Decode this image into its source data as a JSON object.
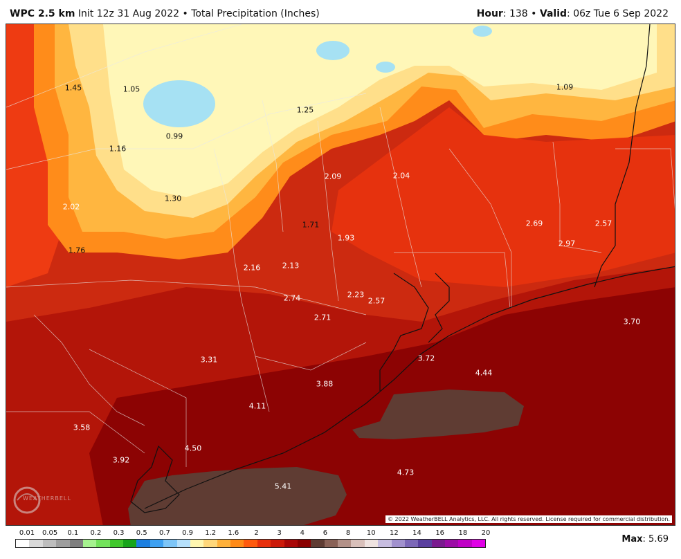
{
  "header": {
    "model": "WPC 2.5 km",
    "init": "Init 12z 31 Aug 2022",
    "bullet": "•",
    "product": "Total Precipitation (Inches)",
    "hour_label": "Hour",
    "hour_value": ": 138",
    "valid_label": "Valid",
    "valid_value": ": 06z Tue 6 Sep 2022"
  },
  "map": {
    "values": [
      {
        "text": "1.45",
        "tone": "dark"
      },
      {
        "text": "1.05",
        "tone": "dark"
      },
      {
        "text": "0.99",
        "tone": "dark"
      },
      {
        "text": "1.16",
        "tone": "dark"
      },
      {
        "text": "1.25",
        "tone": "dark"
      },
      {
        "text": "1.09",
        "tone": "dark"
      },
      {
        "text": "2.02",
        "tone": "light"
      },
      {
        "text": "1.30",
        "tone": "dark"
      },
      {
        "text": "2.09",
        "tone": "light"
      },
      {
        "text": "2.04",
        "tone": "light"
      },
      {
        "text": "1.71",
        "tone": "dark"
      },
      {
        "text": "1.93",
        "tone": "light"
      },
      {
        "text": "2.69",
        "tone": "light"
      },
      {
        "text": "2.57",
        "tone": "light"
      },
      {
        "text": "2.97",
        "tone": "light"
      },
      {
        "text": "1.76",
        "tone": "dark"
      },
      {
        "text": "2.16",
        "tone": "light"
      },
      {
        "text": "2.13",
        "tone": "light"
      },
      {
        "text": "2.74",
        "tone": "light"
      },
      {
        "text": "2.23",
        "tone": "light"
      },
      {
        "text": "2.57",
        "tone": "light"
      },
      {
        "text": "2.71",
        "tone": "light"
      },
      {
        "text": "3.70",
        "tone": "light"
      },
      {
        "text": "3.31",
        "tone": "light"
      },
      {
        "text": "3.72",
        "tone": "light"
      },
      {
        "text": "4.44",
        "tone": "light"
      },
      {
        "text": "3.88",
        "tone": "light"
      },
      {
        "text": "4.11",
        "tone": "light"
      },
      {
        "text": "3.58",
        "tone": "light"
      },
      {
        "text": "4.50",
        "tone": "light"
      },
      {
        "text": "3.92",
        "tone": "light"
      },
      {
        "text": "4.73",
        "tone": "light"
      },
      {
        "text": "5.41",
        "tone": "light"
      }
    ],
    "copyright": "© 2022 WeatherBELL Analytics, LLC. All rights reserved. License required for commercial distribution.",
    "logo_text": "WEATHERBELL"
  },
  "legend": {
    "labels": [
      "0.01",
      "0.05",
      "0.1",
      "0.2",
      "0.3",
      "0.5",
      "0.7",
      "0.9",
      "1.2",
      "1.6",
      "2",
      "3",
      "4",
      "6",
      "8",
      "10",
      "12",
      "14",
      "16",
      "18",
      "20"
    ],
    "colors": [
      "#ffffff",
      "#d9d9d9",
      "#bdbdbd",
      "#9e9e9e",
      "#7f7f7f",
      "#a6f28f",
      "#73e25b",
      "#3fc72b",
      "#17a41a",
      "#1c7fe0",
      "#3ea1f2",
      "#7dc5f7",
      "#b6e0fb",
      "#fff6b0",
      "#ffd77a",
      "#ffb13b",
      "#ff8a17",
      "#ff5a0e",
      "#e8300c",
      "#cc1a0a",
      "#a90707",
      "#8a0000",
      "#5f3c33",
      "#8a6257",
      "#b39188",
      "#d9c0ba",
      "#efe3e0",
      "#c7bde0",
      "#a191ce",
      "#7c68b8",
      "#5a3f9f",
      "#7a1a8f",
      "#9c0ca6",
      "#c000c6",
      "#e000e6"
    ],
    "max_label": "Max",
    "max_value": ": 5.69"
  }
}
